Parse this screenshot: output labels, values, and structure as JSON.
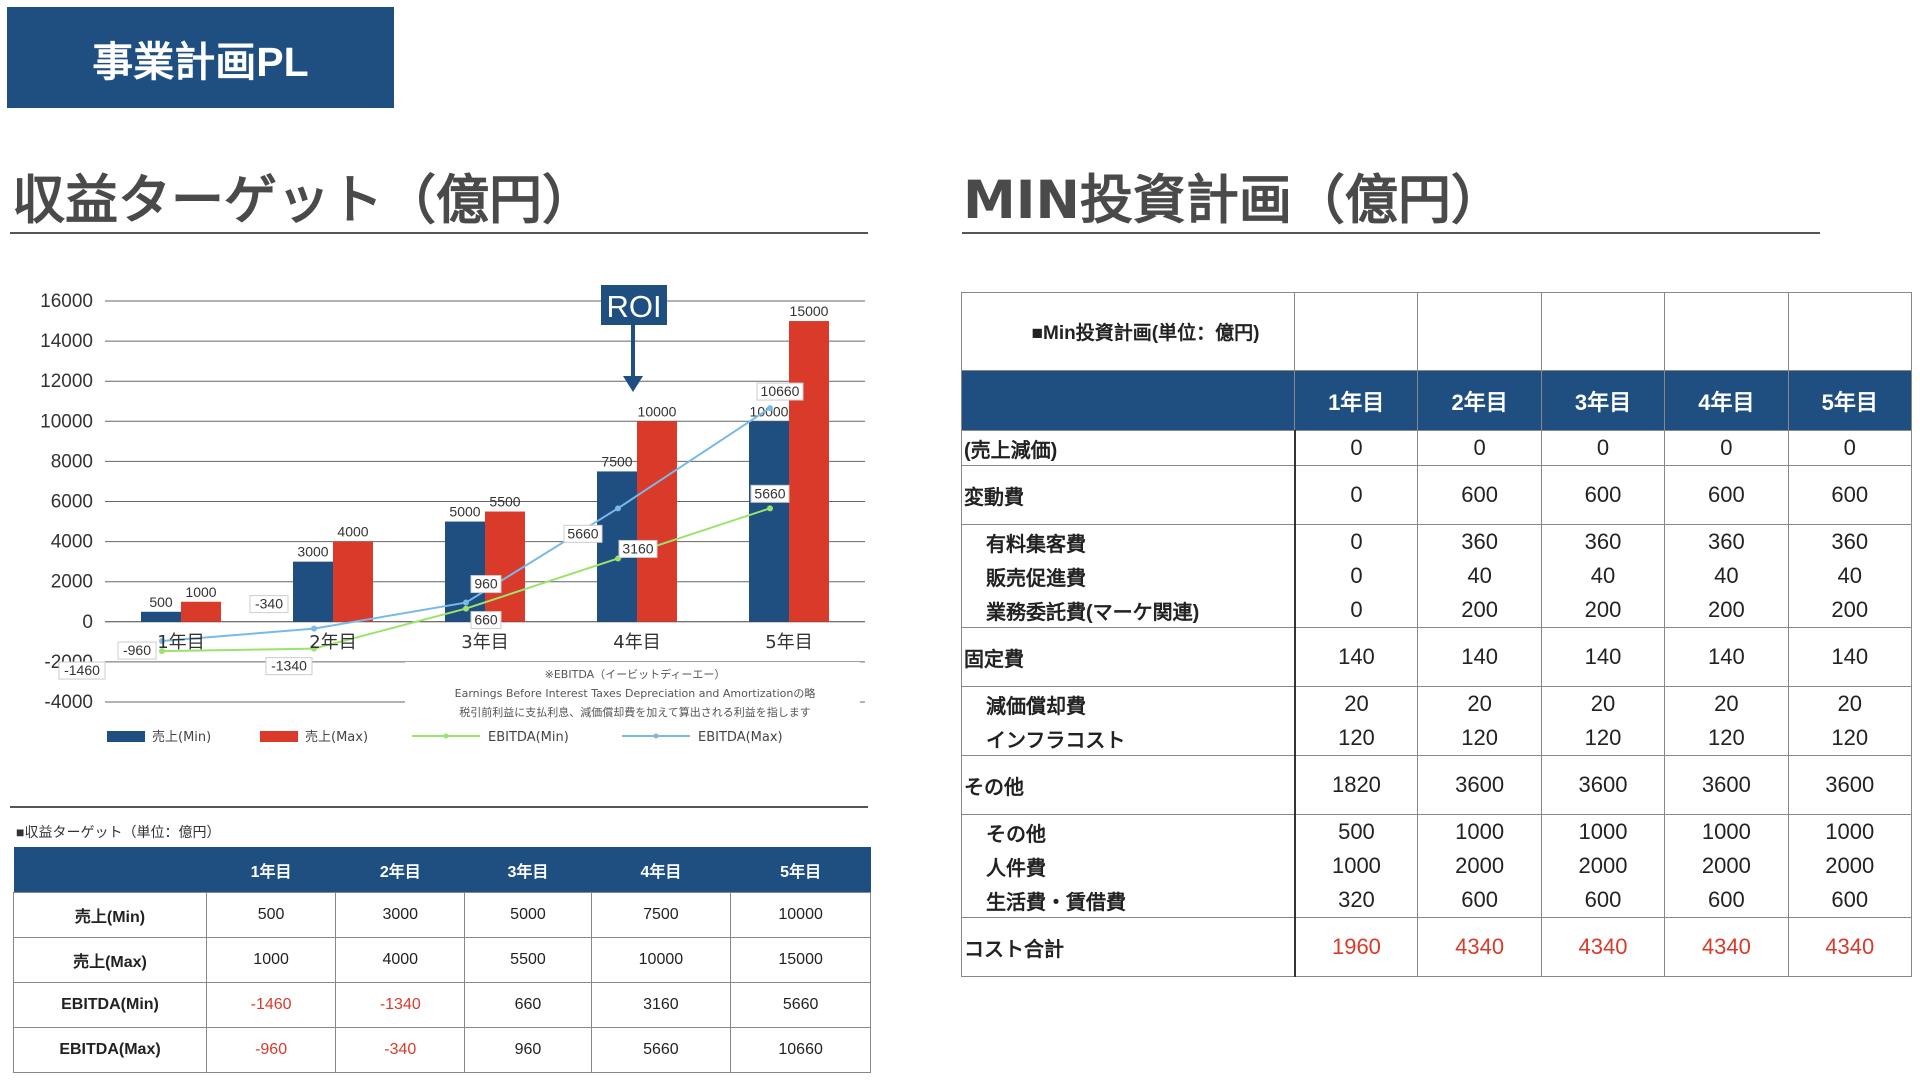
{
  "header": {
    "badge": "事業計画PL"
  },
  "left_title": "収益ターゲット（億円）",
  "right_title": "MIN投資計画（億円）",
  "colors": {
    "navy": "#1f4e80",
    "red": "#d93a2a",
    "green": "#9be36a",
    "blue": "#79b9e8"
  },
  "chart_data": {
    "type": "bar",
    "categories": [
      "1年目",
      "2年目",
      "3年目",
      "4年目",
      "5年目"
    ],
    "series": [
      {
        "name": "売上(Min)",
        "kind": "bar",
        "color": "#1f4e80",
        "values": [
          500,
          3000,
          5000,
          7500,
          10000
        ]
      },
      {
        "name": "売上(Max)",
        "kind": "bar",
        "color": "#d93a2a",
        "values": [
          1000,
          4000,
          5500,
          10000,
          15000
        ]
      },
      {
        "name": "EBITDA(Min)",
        "kind": "line",
        "color": "#9be36a",
        "values": [
          -1460,
          -1340,
          660,
          3160,
          5660
        ]
      },
      {
        "name": "EBITDA(Max)",
        "kind": "line",
        "color": "#79b9e8",
        "values": [
          -960,
          -340,
          960,
          5660,
          10660
        ]
      }
    ],
    "yticks": [
      16000,
      14000,
      12000,
      10000,
      8000,
      6000,
      4000,
      2000,
      0,
      -2000,
      -4000
    ],
    "ylim": [
      -4000,
      16000
    ],
    "annotation": {
      "text": "ROI",
      "category": "4年目"
    },
    "note": [
      "※EBITDA（イービットディーエー）",
      "Earnings Before Interest Taxes Depreciation and Amortizationの略",
      "税引前利益に支払利息、減価償却費を加えて算出される利益を指します"
    ],
    "legend_position": "bottom"
  },
  "revenue_table": {
    "caption": "■収益ターゲット（単位：億円）",
    "headers": [
      "",
      "1年目",
      "2年目",
      "3年目",
      "4年目",
      "5年目"
    ],
    "rows": [
      {
        "label": "売上(Min)",
        "values": [
          "500",
          "3000",
          "5000",
          "7500",
          "10000"
        ]
      },
      {
        "label": "売上(Max)",
        "values": [
          "1000",
          "4000",
          "5500",
          "10000",
          "15000"
        ]
      },
      {
        "label": "EBITDA(Min)",
        "values": [
          "-1460",
          "-1340",
          "660",
          "3160",
          "5660"
        ]
      },
      {
        "label": "EBITDA(Max)",
        "values": [
          "-960",
          "-340",
          "960",
          "5660",
          "10660"
        ]
      }
    ]
  },
  "investment_table": {
    "caption": "■Min投資計画(単位：億円)",
    "headers": [
      "1年目",
      "2年目",
      "3年目",
      "4年目",
      "5年目"
    ],
    "rows": [
      {
        "label": "(売上減価)",
        "values": [
          "0",
          "0",
          "0",
          "0",
          "0"
        ]
      },
      {
        "label": "変動費",
        "values": [
          "0",
          "600",
          "600",
          "600",
          "600"
        ]
      },
      {
        "label": "有料集客費",
        "values": [
          "0",
          "360",
          "360",
          "360",
          "360"
        ]
      },
      {
        "label": "販売促進費",
        "values": [
          "0",
          "40",
          "40",
          "40",
          "40"
        ]
      },
      {
        "label": "業務委託費(マーケ関連)",
        "values": [
          "0",
          "200",
          "200",
          "200",
          "200"
        ]
      },
      {
        "label": "固定費",
        "values": [
          "140",
          "140",
          "140",
          "140",
          "140"
        ]
      },
      {
        "label": "減価償却費",
        "values": [
          "20",
          "20",
          "20",
          "20",
          "20"
        ]
      },
      {
        "label": "インフラコスト",
        "values": [
          "120",
          "120",
          "120",
          "120",
          "120"
        ]
      },
      {
        "label": "その他",
        "values": [
          "1820",
          "3600",
          "3600",
          "3600",
          "3600"
        ]
      },
      {
        "label": "その他",
        "values": [
          "500",
          "1000",
          "1000",
          "1000",
          "1000"
        ]
      },
      {
        "label": "人件費",
        "values": [
          "1000",
          "2000",
          "2000",
          "2000",
          "2000"
        ]
      },
      {
        "label": "生活費・賃借費",
        "values": [
          "320",
          "600",
          "600",
          "600",
          "600"
        ]
      },
      {
        "label": "コスト合計",
        "values": [
          "1960",
          "4340",
          "4340",
          "4340",
          "4340"
        ]
      }
    ]
  }
}
